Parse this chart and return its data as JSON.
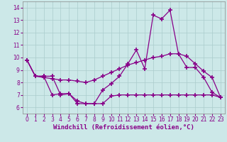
{
  "xlabel": "Windchill (Refroidissement éolien,°C)",
  "background_color": "#cce8e8",
  "grid_color": "#aacccc",
  "line_color": "#880088",
  "x": [
    0,
    1,
    2,
    3,
    4,
    5,
    6,
    7,
    8,
    9,
    10,
    11,
    12,
    13,
    14,
    15,
    16,
    17,
    18,
    19,
    20,
    21,
    22,
    23
  ],
  "y_main": [
    9.8,
    8.5,
    8.5,
    8.5,
    7.0,
    7.1,
    6.3,
    6.3,
    6.3,
    7.4,
    7.9,
    8.5,
    9.5,
    10.6,
    9.1,
    13.4,
    13.1,
    13.8,
    10.3,
    9.2,
    9.2,
    8.4,
    7.2,
    6.8
  ],
  "y_smooth1": [
    9.8,
    8.5,
    8.4,
    8.3,
    8.2,
    8.2,
    8.1,
    8.0,
    8.2,
    8.5,
    8.8,
    9.1,
    9.4,
    9.6,
    9.8,
    10.0,
    10.1,
    10.3,
    10.3,
    10.1,
    9.5,
    8.9,
    8.4,
    6.8
  ],
  "y_bottom": [
    9.8,
    8.5,
    8.5,
    7.0,
    7.1,
    7.1,
    6.5,
    6.3,
    6.3,
    6.3,
    6.9,
    7.0,
    7.0,
    7.0,
    7.0,
    7.0,
    7.0,
    7.0,
    7.0,
    7.0,
    7.0,
    7.0,
    7.0,
    6.8
  ],
  "ylim": [
    5.5,
    14.5
  ],
  "xlim": [
    -0.5,
    23.5
  ],
  "yticks": [
    6,
    7,
    8,
    9,
    10,
    11,
    12,
    13,
    14
  ],
  "xticks": [
    0,
    1,
    2,
    3,
    4,
    5,
    6,
    7,
    8,
    9,
    10,
    11,
    12,
    13,
    14,
    15,
    16,
    17,
    18,
    19,
    20,
    21,
    22,
    23
  ],
  "marker": "+",
  "markersize": 4,
  "markeredgewidth": 1.2,
  "linewidth": 0.9,
  "tick_fontsize": 5.5,
  "xlabel_fontsize": 6.5
}
